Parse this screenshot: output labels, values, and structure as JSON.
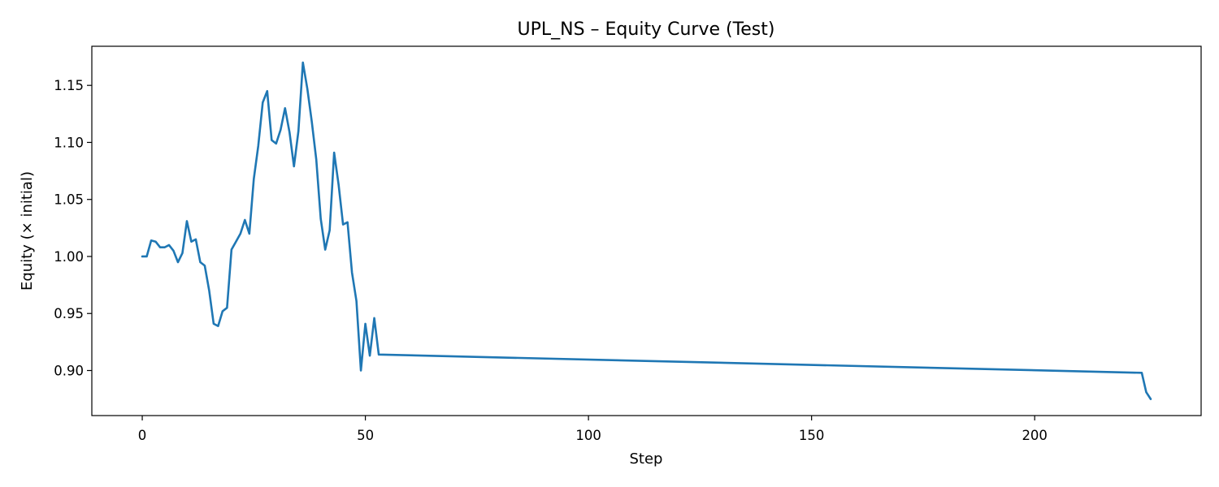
{
  "chart_data": {
    "type": "line",
    "title": "UPL_NS – Equity Curve (Test)",
    "xlabel": "Step",
    "ylabel": "Equity (× initial)",
    "xlim": [
      -11.3,
      237.3
    ],
    "ylim": [
      0.8605,
      1.1843
    ],
    "xticks": [
      0,
      50,
      100,
      150,
      200
    ],
    "yticks": [
      0.9,
      0.95,
      1.0,
      1.05,
      1.1,
      1.15
    ],
    "xtick_labels": [
      "0",
      "50",
      "100",
      "150",
      "200"
    ],
    "ytick_labels": [
      "0.90",
      "0.95",
      "1.00",
      "1.05",
      "1.10",
      "1.15"
    ],
    "grid": false,
    "legend": "none",
    "series": [
      {
        "color": "#1f77b4",
        "x": [
          0,
          1,
          2,
          3,
          4,
          5,
          6,
          7,
          8,
          9,
          10,
          11,
          12,
          13,
          14,
          15,
          16,
          17,
          18,
          19,
          20,
          21,
          22,
          23,
          24,
          25,
          26,
          27,
          28,
          29,
          30,
          31,
          32,
          33,
          34,
          35,
          36,
          37,
          38,
          39,
          40,
          41,
          42,
          43,
          44,
          45,
          46,
          47,
          48,
          49,
          50,
          51,
          52,
          53,
          224,
          225,
          226
        ],
        "y": [
          1.0,
          1.0,
          1.014,
          1.013,
          1.008,
          1.008,
          1.01,
          1.005,
          0.995,
          1.003,
          1.031,
          1.013,
          1.015,
          0.995,
          0.992,
          0.97,
          0.941,
          0.939,
          0.952,
          0.955,
          1.006,
          1.013,
          1.02,
          1.032,
          1.02,
          1.068,
          1.097,
          1.135,
          1.145,
          1.102,
          1.099,
          1.111,
          1.13,
          1.109,
          1.079,
          1.11,
          1.17,
          1.147,
          1.118,
          1.085,
          1.033,
          1.006,
          1.023,
          1.091,
          1.063,
          1.028,
          1.03,
          0.986,
          0.961,
          0.9,
          0.941,
          0.913,
          0.946,
          0.914,
          0.898,
          0.881,
          0.875
        ]
      }
    ]
  }
}
